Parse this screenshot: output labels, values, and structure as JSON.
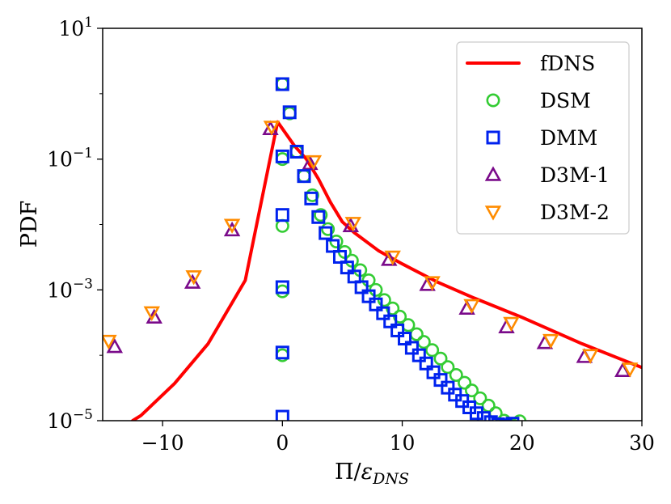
{
  "chart_data": {
    "type": "scatter",
    "xlabel": "Π/εDNS",
    "ylabel": "PDF",
    "xlim": [
      -15,
      30
    ],
    "ylim": [
      1e-05,
      10
    ],
    "yscale": "log",
    "grid": false,
    "legend_position": "top-right",
    "x_ticks": [
      {
        "value": -10,
        "label": "−10"
      },
      {
        "value": 0,
        "label": "0"
      },
      {
        "value": 10,
        "label": "10"
      },
      {
        "value": 20,
        "label": "20"
      },
      {
        "value": 30,
        "label": "30"
      }
    ],
    "y_ticks": [
      {
        "value": 10,
        "base": "10",
        "exp": "1"
      },
      {
        "value": 0.1,
        "base": "10",
        "exp": "−1"
      },
      {
        "value": 0.001,
        "base": "10",
        "exp": "−3"
      },
      {
        "value": 1e-05,
        "base": "10",
        "exp": "−5"
      }
    ],
    "series": [
      {
        "name": "fDNS",
        "style": "line",
        "color": "#ff0000",
        "x": [
          -12.5,
          -11.8,
          -9,
          -6.2,
          -3.1,
          -0.4,
          1,
          2,
          3,
          4,
          5,
          6,
          8,
          10,
          13,
          16,
          20,
          25,
          30
        ],
        "y": [
          1e-05,
          1.2e-05,
          3.7e-05,
          0.00015,
          0.0014,
          0.37,
          0.16,
          0.1,
          0.05,
          0.022,
          0.011,
          0.0075,
          0.004,
          0.0025,
          0.0013,
          0.00075,
          0.00038,
          0.00015,
          6.5e-05
        ]
      },
      {
        "name": "DSM",
        "style": "marker",
        "marker": "circle",
        "color": "#33cc33",
        "x": [
          0,
          0,
          0,
          0,
          0,
          0.6,
          1.2,
          1.8,
          2.5,
          3.2,
          3.8,
          4.5,
          5.2,
          5.8,
          6.5,
          7.2,
          7.8,
          8.5,
          9.2,
          9.8,
          10.5,
          11.2,
          11.8,
          12.5,
          13.2,
          13.8,
          14.5,
          15.2,
          15.8,
          16.5,
          17.2,
          17.8,
          18.5,
          19.2,
          19.8
        ],
        "y": [
          1.4,
          0.1,
          0.0095,
          0.00095,
          0.0001,
          0.5,
          0.13,
          0.055,
          0.028,
          0.014,
          0.0085,
          0.0055,
          0.0038,
          0.0028,
          0.002,
          0.0014,
          0.001,
          0.0007,
          0.00052,
          0.00039,
          0.00029,
          0.00021,
          0.00016,
          0.00012,
          8.9e-05,
          6.6e-05,
          5e-05,
          3.8e-05,
          2.9e-05,
          2.2e-05,
          1.7e-05,
          1.3e-05,
          1e-05,
          8.5e-06,
          9.8e-06
        ]
      },
      {
        "name": "DMM",
        "style": "marker",
        "marker": "square",
        "color": "#0022ee",
        "x": [
          0,
          0,
          0,
          0,
          0,
          0,
          0.6,
          1.2,
          1.8,
          2.4,
          3,
          3.6,
          4.2,
          4.8,
          5.4,
          6,
          6.6,
          7.2,
          7.8,
          8.4,
          9,
          9.6,
          10.2,
          10.8,
          11.4,
          12,
          12.6,
          13.2,
          13.8,
          14.4,
          15,
          15.6,
          16.2,
          16.8,
          17.4,
          18,
          18.6,
          19.2
        ],
        "y": [
          1.4,
          0.11,
          0.014,
          0.0011,
          0.00011,
          1.15e-05,
          0.52,
          0.13,
          0.055,
          0.025,
          0.013,
          0.0074,
          0.0047,
          0.0032,
          0.0022,
          0.0016,
          0.0011,
          0.0008,
          0.0006,
          0.00044,
          0.00033,
          0.00024,
          0.00018,
          0.00013,
          0.0001,
          7.5e-05,
          5.5e-05,
          4.2e-05,
          3.2e-05,
          2.5e-05,
          2e-05,
          1.6e-05,
          1.3e-05,
          1.1e-05,
          9.5e-06,
          8.8e-06,
          8.5e-06,
          9e-06
        ]
      },
      {
        "name": "D3M-1",
        "style": "marker",
        "marker": "triangle-up",
        "color": "#7a0a8a",
        "x": [
          -14,
          -10.7,
          -7.5,
          -4.2,
          -1,
          2.3,
          5.7,
          8.9,
          12.1,
          15.4,
          18.7,
          21.9,
          25.2,
          28.4
        ],
        "y": [
          0.000135,
          0.00038,
          0.0013,
          0.0082,
          0.29,
          0.085,
          0.0095,
          0.0029,
          0.0012,
          0.00052,
          0.00027,
          0.000155,
          9.5e-05,
          5.8e-05
        ]
      },
      {
        "name": "D3M-2",
        "style": "marker",
        "marker": "triangle-down",
        "color": "#ff8c00",
        "x": [
          -14.5,
          -10.9,
          -7.4,
          -4.2,
          -0.9,
          2.6,
          5.9,
          9.2,
          12.5,
          15.8,
          19.1,
          22.4,
          25.7,
          29
        ],
        "y": [
          0.000165,
          0.00045,
          0.0016,
          0.0098,
          0.31,
          0.092,
          0.0105,
          0.0032,
          0.0013,
          0.00058,
          0.00031,
          0.00017,
          0.0001,
          6.2e-05
        ]
      }
    ]
  }
}
